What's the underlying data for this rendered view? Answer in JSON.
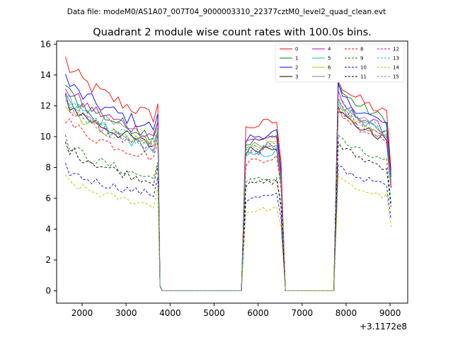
{
  "suptitle": "Data file: modeM0/AS1A07_007T04_9000003310_22377cztM0_level2_quad_clean.evt",
  "chart_data": {
    "type": "line",
    "title": "Quadrant 2 module wise count rates with 100.0s bins.",
    "xlabel": "",
    "ylabel": "",
    "x_offset_label": "+3.1172e8",
    "xlim": [
      1420,
      9400
    ],
    "ylim": [
      -0.8,
      16.2
    ],
    "xticks": [
      2000,
      3000,
      4000,
      5000,
      6000,
      7000,
      8000,
      9000
    ],
    "yticks": [
      0,
      2,
      4,
      6,
      8,
      10,
      12,
      14,
      16
    ],
    "legend_position": "top-right",
    "segments": [
      [
        1620,
        3720
      ],
      [
        5720,
        6520
      ],
      [
        7820,
        9020
      ]
    ],
    "gap_x": [
      3820,
      3920,
      4020,
      4120,
      4220,
      4320,
      4420,
      4520,
      4620,
      4720,
      4820,
      4920,
      5020,
      5120,
      5220,
      5320,
      5420,
      5520,
      5620,
      6620,
      6720,
      6820,
      6920,
      7020,
      7120,
      7220,
      7320,
      7420,
      7520,
      7620,
      7720
    ],
    "series": [
      {
        "name": "0",
        "color": "#ff0000",
        "dash": "solid",
        "levels": [
          15.0,
          11.2,
          10.5,
          12.6
        ]
      },
      {
        "name": "1",
        "color": "#008000",
        "dash": "solid",
        "levels": [
          13.3,
          10.0,
          9.5,
          12.2
        ]
      },
      {
        "name": "2",
        "color": "#0000ff",
        "dash": "solid",
        "levels": [
          13.9,
          10.5,
          9.8,
          11.9
        ]
      },
      {
        "name": "3",
        "color": "#000000",
        "dash": "solid",
        "levels": [
          12.6,
          9.3,
          9.0,
          10.8
        ]
      },
      {
        "name": "4",
        "color": "#bf00bf",
        "dash": "solid",
        "levels": [
          13.4,
          10.0,
          9.6,
          11.5
        ]
      },
      {
        "name": "5",
        "color": "#00bfbf",
        "dash": "solid",
        "levels": [
          12.9,
          9.0,
          8.6,
          11.2
        ]
      },
      {
        "name": "6",
        "color": "#bfbf00",
        "dash": "solid",
        "levels": [
          12.2,
          9.4,
          9.1,
          11.0
        ]
      },
      {
        "name": "7",
        "color": "#808080",
        "dash": "solid",
        "levels": [
          13.1,
          9.6,
          9.2,
          11.3
        ]
      },
      {
        "name": "8",
        "color": "#ff0000",
        "dash": "dashed",
        "levels": [
          11.3,
          8.6,
          8.3,
          10.8
        ]
      },
      {
        "name": "9",
        "color": "#008000",
        "dash": "dashed",
        "levels": [
          9.8,
          7.2,
          7.0,
          9.2
        ]
      },
      {
        "name": "10",
        "color": "#0000ff",
        "dash": "dashed",
        "levels": [
          8.0,
          6.2,
          5.9,
          7.5
        ]
      },
      {
        "name": "11",
        "color": "#000000",
        "dash": "dashed",
        "levels": [
          9.6,
          7.0,
          6.8,
          8.8
        ]
      },
      {
        "name": "12",
        "color": "#bf00bf",
        "dash": "dashed",
        "levels": [
          12.4,
          9.1,
          8.8,
          11.0
        ]
      },
      {
        "name": "13",
        "color": "#00bfbf",
        "dash": "dashed",
        "levels": [
          12.6,
          9.3,
          9.0,
          11.4
        ]
      },
      {
        "name": "14",
        "color": "#bfbf00",
        "dash": "dashed",
        "levels": [
          7.3,
          5.5,
          5.1,
          6.7
        ]
      },
      {
        "name": "15",
        "color": "#808080",
        "dash": "dashed",
        "levels": [
          12.3,
          9.2,
          8.9,
          11.1
        ]
      }
    ]
  }
}
